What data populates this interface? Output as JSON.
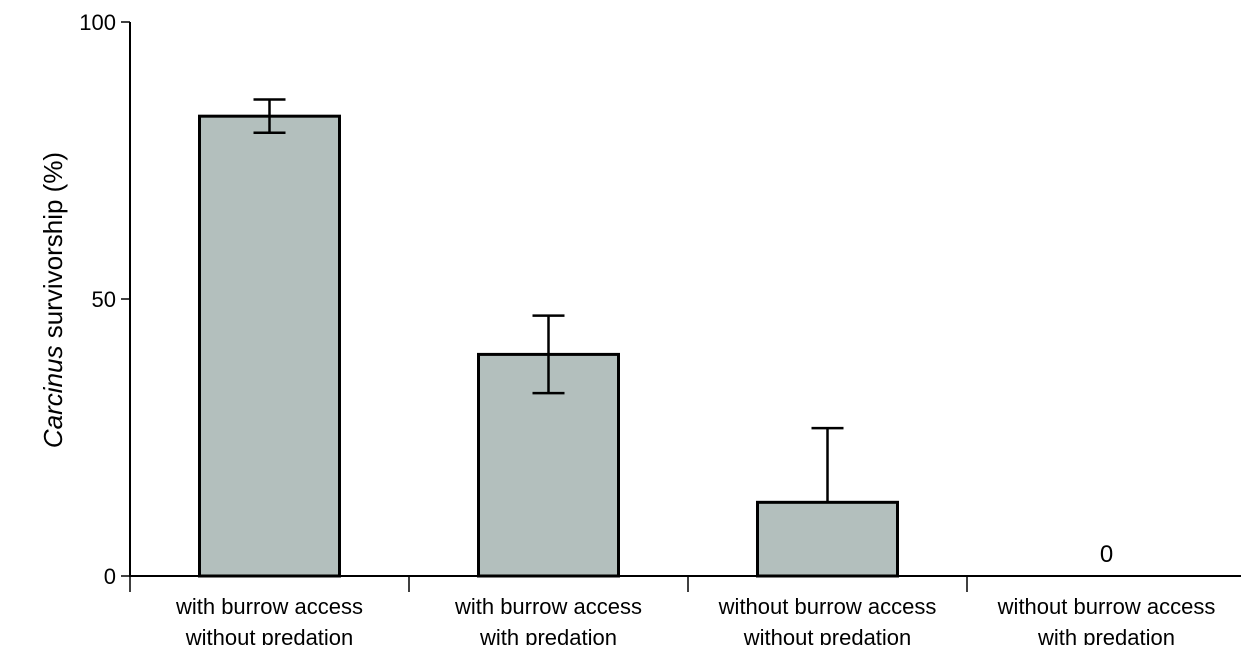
{
  "chart_data": {
    "type": "bar",
    "title": "",
    "xlabel": "",
    "ylabel_italic": "Carcinus",
    "ylabel_rest": " survivorship (%)",
    "ylim": [
      0,
      100
    ],
    "yticks": [
      0,
      50,
      100
    ],
    "grid": false,
    "categories": [
      [
        "with burrow access",
        "without predation"
      ],
      [
        "with burrow access",
        "with predation"
      ],
      [
        "without burrow access",
        "without predation"
      ],
      [
        "without burrow access",
        "with predation"
      ]
    ],
    "values": [
      83,
      40,
      13.3,
      0
    ],
    "error_upper": [
      86,
      47,
      26.7,
      null
    ],
    "error_lower": [
      80,
      33,
      null,
      null
    ],
    "value_labels": [
      "",
      "",
      "",
      "0"
    ],
    "bar_color": "#b3bfbd",
    "axis_color": "#000000"
  }
}
